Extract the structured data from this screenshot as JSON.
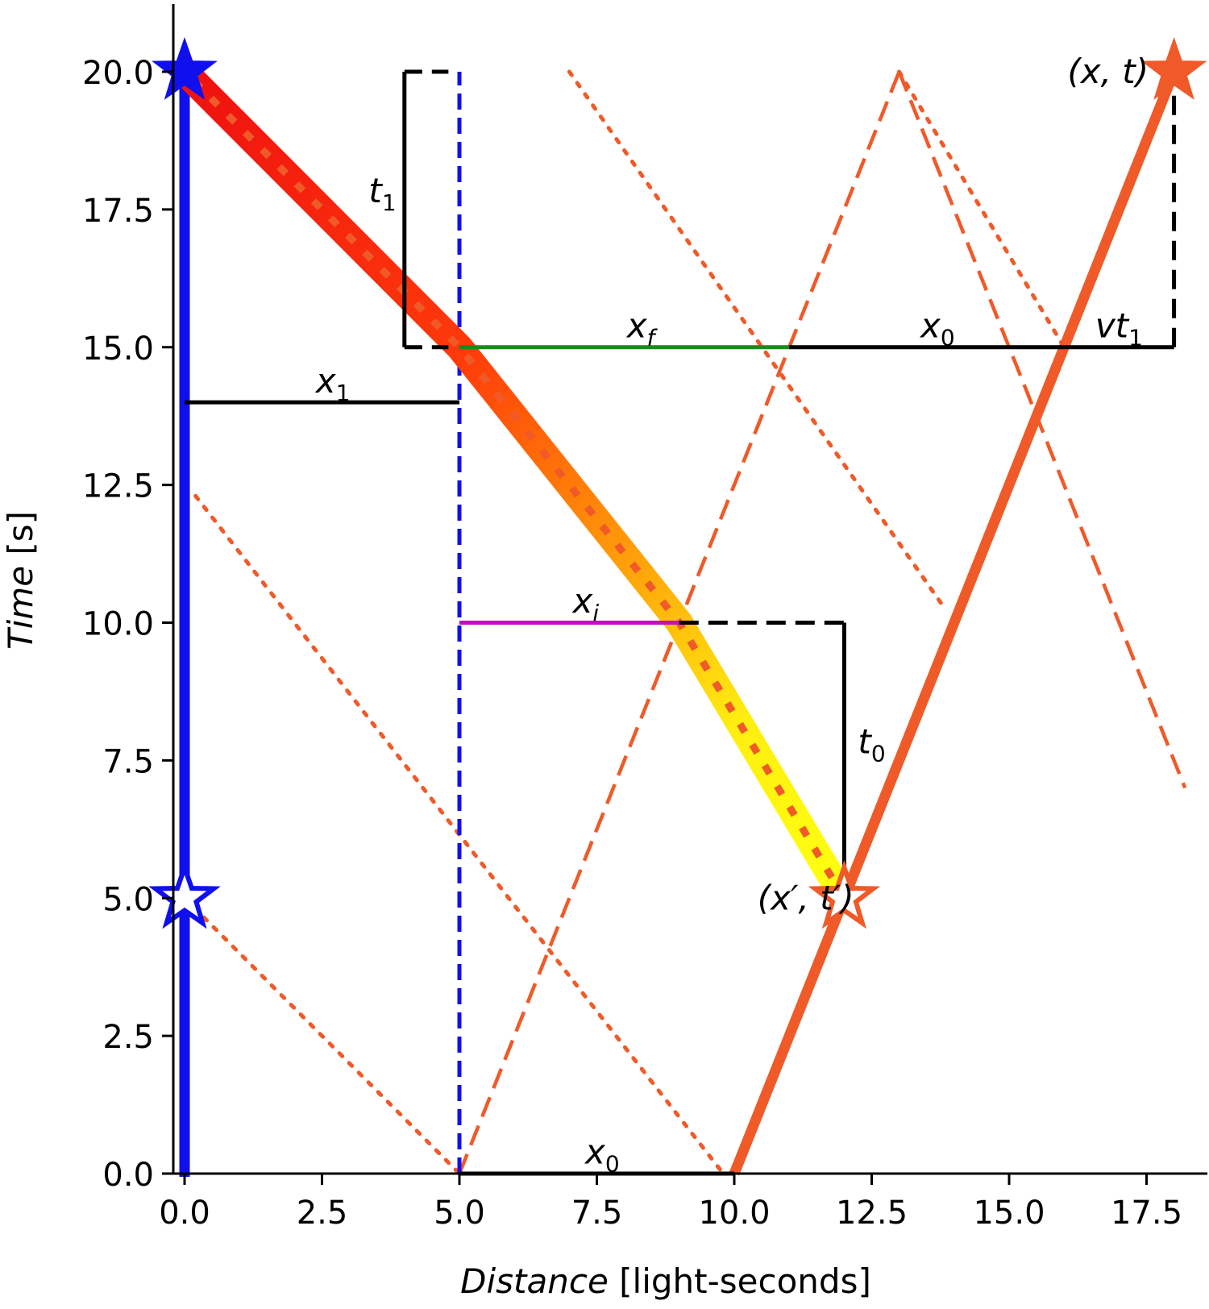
{
  "chart_data": {
    "type": "line",
    "xlabel_italic": "Distance",
    "xlabel_unit": " [light-seconds]",
    "ylabel_italic": "Time",
    "ylabel_unit": " [s]",
    "xlim": [
      -0.2,
      18.2
    ],
    "ylim": [
      0,
      20
    ],
    "xticks": [
      0.0,
      2.5,
      5.0,
      7.5,
      10.0,
      12.5,
      15.0,
      17.5
    ],
    "xtick_labels": [
      "0.0",
      "2.5",
      "5.0",
      "7.5",
      "10.0",
      "12.5",
      "15.0",
      "17.5"
    ],
    "yticks": [
      0.0,
      2.5,
      5.0,
      7.5,
      10.0,
      12.5,
      15.0,
      17.5,
      20.0
    ],
    "ytick_labels": [
      "0.0",
      "2.5",
      "5.0",
      "7.5",
      "10.0",
      "12.5",
      "15.0",
      "17.5",
      "20.0"
    ],
    "grid": false,
    "colors": {
      "blue": "#1010ee",
      "orange": "#f05a28",
      "green": "#1a8a1a",
      "magenta": "#c010c0",
      "red": "#ee1010",
      "yellow": "#ffff10"
    },
    "series": [
      {
        "role": "blue worldline",
        "x": [
          0,
          0
        ],
        "y": [
          0,
          20
        ]
      },
      {
        "role": "blue dashed worldline",
        "x": [
          5,
          5
        ],
        "y": [
          0,
          20
        ]
      },
      {
        "role": "orange worldline",
        "x": [
          10,
          18
        ],
        "y": [
          0,
          20
        ]
      },
      {
        "role": "signal gradient path",
        "x": [
          12,
          9,
          5,
          0
        ],
        "y": [
          5,
          10,
          15,
          20
        ]
      },
      {
        "role": "dashed light path",
        "x": [
          5,
          13,
          20
        ],
        "y": [
          0,
          20,
          2.5
        ]
      },
      {
        "role": "dotted light path lower",
        "x": [
          0,
          5
        ],
        "y": [
          5,
          0
        ]
      },
      {
        "role": "dotted light path 1",
        "x": [
          0.2,
          9.8
        ],
        "y": [
          12.3,
          0
        ]
      },
      {
        "role": "dotted light path 2",
        "x": [
          7,
          13.8
        ],
        "y": [
          20,
          10.3
        ]
      },
      {
        "role": "dotted light path 3",
        "x": [
          13,
          16
        ],
        "y": [
          20,
          15
        ]
      }
    ],
    "markers": [
      {
        "x": 0,
        "y": 20,
        "style": "filled",
        "color": "blue"
      },
      {
        "x": 0,
        "y": 5,
        "style": "hollow",
        "color": "blue"
      },
      {
        "x": 18,
        "y": 20,
        "style": "filled",
        "color": "orange"
      },
      {
        "x": 12,
        "y": 5,
        "style": "hollow",
        "color": "orange"
      }
    ],
    "segments": [
      {
        "x": [
          5,
          11
        ],
        "y": [
          15,
          15
        ],
        "color": "green"
      },
      {
        "x": [
          11,
          18
        ],
        "y": [
          15,
          15
        ],
        "color": "black"
      },
      {
        "x": [
          0,
          5
        ],
        "y": [
          14,
          14
        ],
        "color": "black"
      },
      {
        "x": [
          5,
          9
        ],
        "y": [
          10,
          10
        ],
        "color": "magenta"
      },
      {
        "x": [
          9,
          12
        ],
        "y": [
          10,
          10
        ],
        "color": "black",
        "dashed": true
      },
      {
        "x": [
          12,
          12
        ],
        "y": [
          10,
          5
        ],
        "color": "black"
      },
      {
        "x": [
          5,
          10
        ],
        "y": [
          0,
          0
        ],
        "color": "black"
      },
      {
        "x": [
          18,
          18
        ],
        "y": [
          15,
          20
        ],
        "color": "black",
        "dashed": true
      },
      {
        "x": [
          4,
          4
        ],
        "y": [
          15,
          20
        ],
        "color": "black"
      }
    ],
    "annotations": [
      {
        "id": "x_f",
        "base": "x",
        "sub": "f",
        "x": 8.3,
        "y": 15.15
      },
      {
        "id": "x_0_top",
        "base": "x",
        "sub": "0",
        "x": 13.7,
        "y": 15.15
      },
      {
        "id": "vt_1",
        "base": "vt",
        "sub": "1",
        "x": 17.0,
        "y": 15.15
      },
      {
        "id": "t_1",
        "base": "t",
        "sub": "1",
        "x": 3.6,
        "y": 17.6
      },
      {
        "id": "x_1",
        "base": "x",
        "sub": "1",
        "x": 2.7,
        "y": 14.15
      },
      {
        "id": "x_i",
        "base": "x",
        "sub": "i",
        "x": 7.3,
        "y": 10.15
      },
      {
        "id": "t_0",
        "base": "t",
        "sub": "0",
        "x": 12.5,
        "y": 7.6
      },
      {
        "id": "x_0_bottom",
        "base": "x",
        "sub": "0",
        "x": 7.6,
        "y": 0.15
      },
      {
        "id": "pt_xt",
        "text": "(x, t)",
        "x": 16.8,
        "y": 20.0
      },
      {
        "id": "pt_xpt",
        "text": "(x′, t′)",
        "x": 11.3,
        "y": 5.0
      }
    ]
  }
}
